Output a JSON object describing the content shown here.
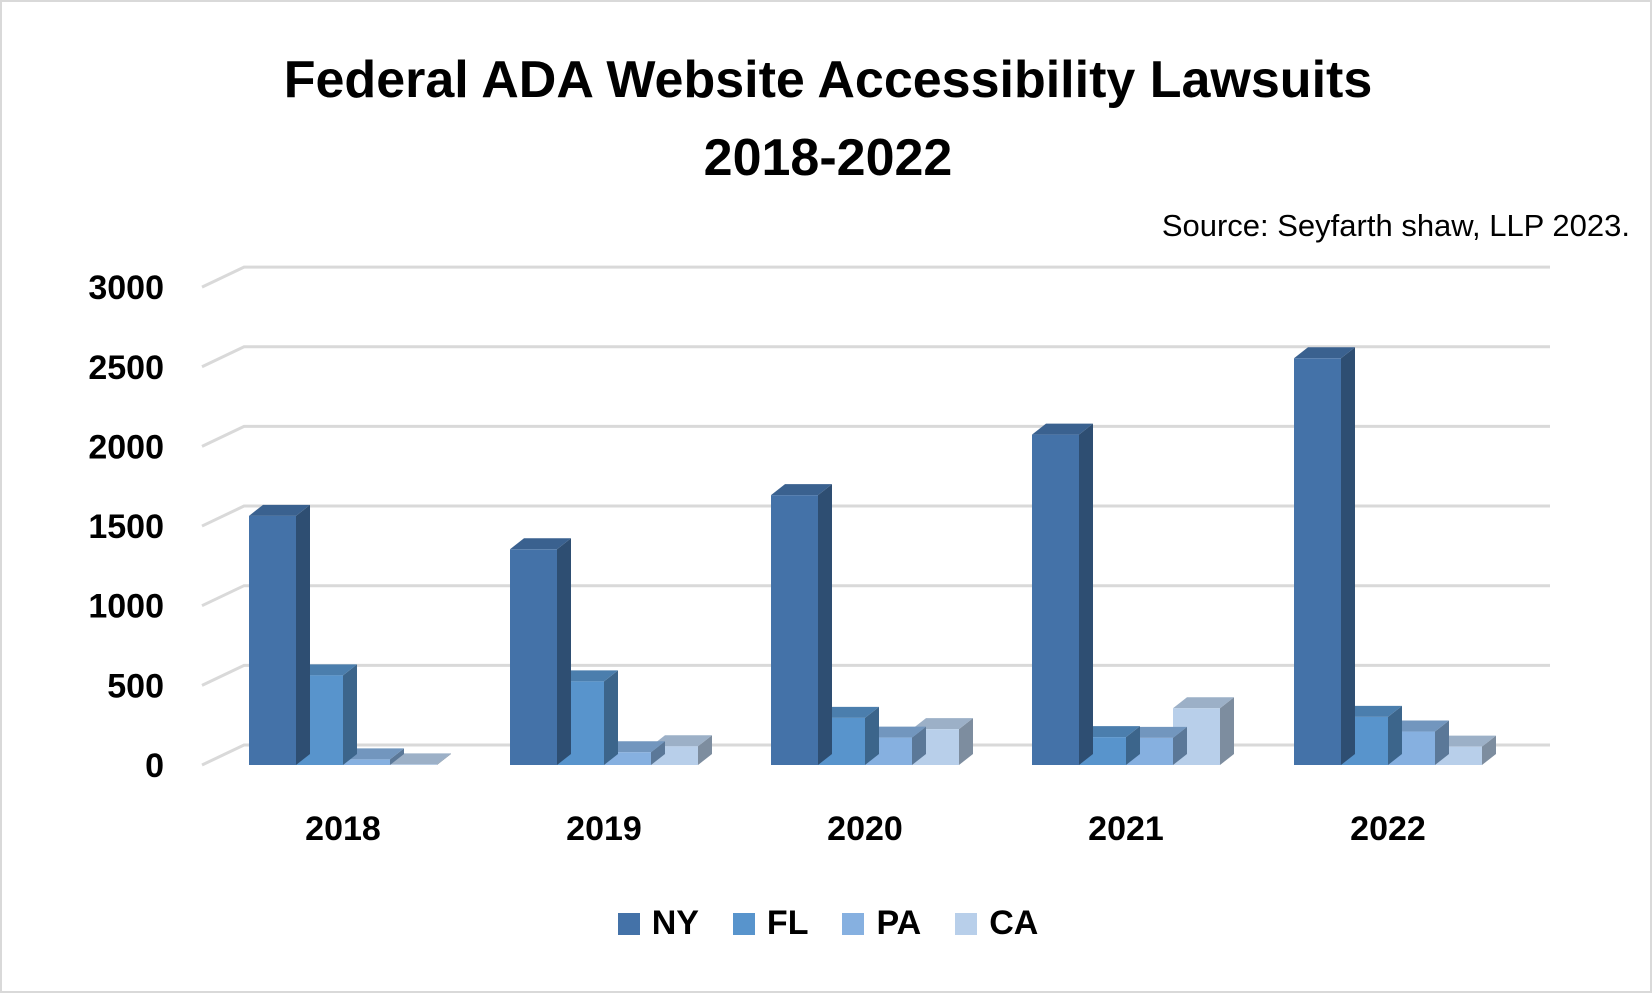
{
  "title_line_1": "Federal ADA Website Accessibility Lawsuits",
  "title_line_2": "2018-2022",
  "source_note": "Source: Seyfarth shaw, LLP 2023.",
  "chart_data": {
    "type": "bar",
    "style": "3d-clustered-column",
    "title": "Federal ADA Website Accessibility Lawsuits 2018-2022",
    "subtitle": "Source: Seyfarth shaw, LLP 2023.",
    "categories": [
      "2018",
      "2019",
      "2020",
      "2021",
      "2022"
    ],
    "series": [
      {
        "name": "NY",
        "color": "#4472a8",
        "values": [
          1564,
          1354,
          1694,
          2074,
          2553
        ]
      },
      {
        "name": "FL",
        "color": "#5894cc",
        "values": [
          563,
          525,
          296,
          175,
          302
        ]
      },
      {
        "name": "PA",
        "color": "#86b0e0",
        "values": [
          35,
          80,
          172,
          170,
          210
        ]
      },
      {
        "name": "CA",
        "color": "#b8cfea",
        "values": [
          4,
          118,
          225,
          356,
          115
        ]
      }
    ],
    "ylim": [
      0,
      3000
    ],
    "yticks": [
      0,
      500,
      1000,
      1500,
      2000,
      2500,
      3000
    ],
    "grid": true,
    "legend_position": "bottom"
  }
}
